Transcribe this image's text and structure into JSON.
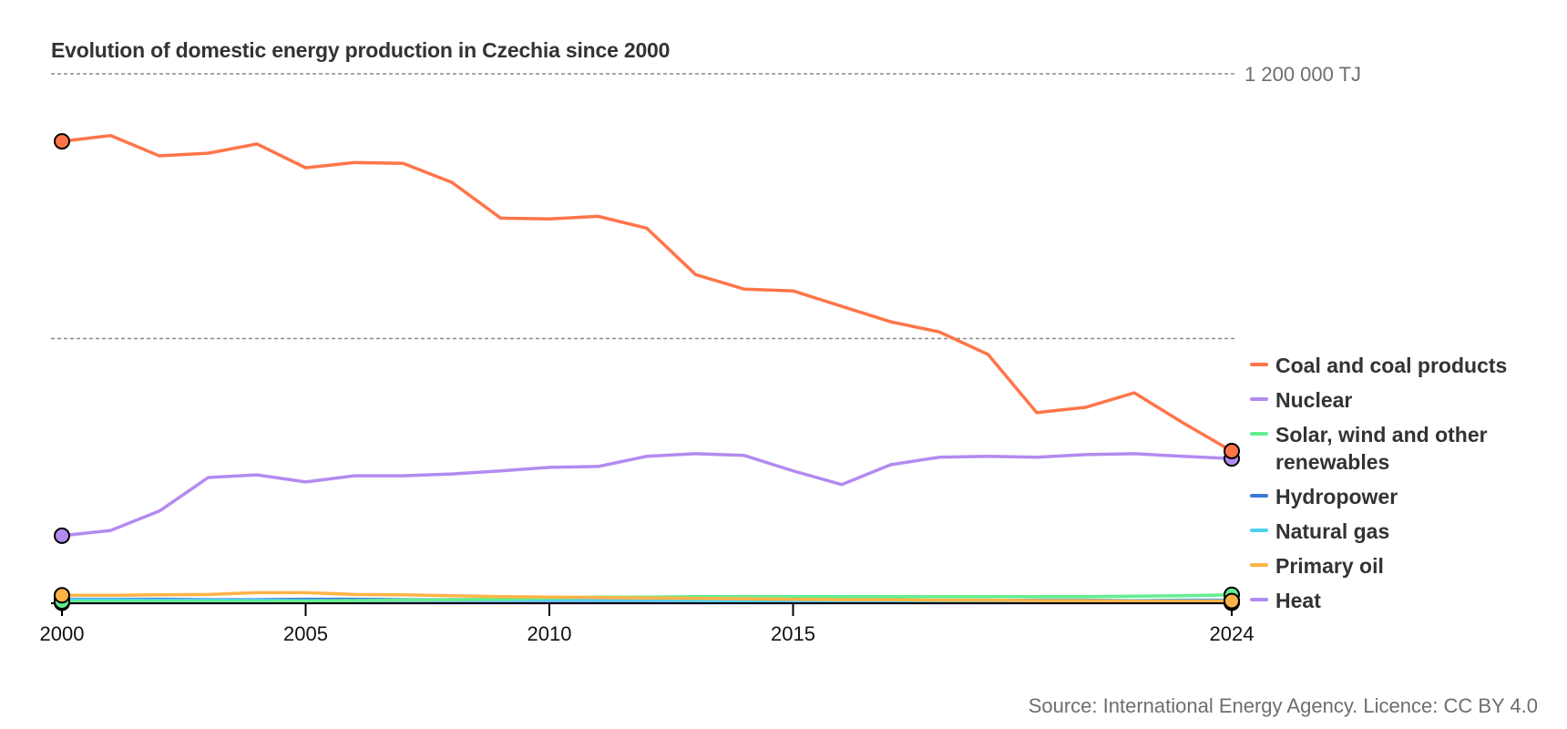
{
  "chart_data": {
    "type": "line",
    "title": "Evolution of domestic energy production in Czechia since 2000",
    "xlabel": "",
    "ylabel": "",
    "unit": "TJ",
    "x": [
      2000,
      2001,
      2002,
      2003,
      2004,
      2005,
      2006,
      2007,
      2008,
      2009,
      2010,
      2011,
      2012,
      2013,
      2014,
      2015,
      2016,
      2017,
      2018,
      2019,
      2020,
      2021,
      2022,
      2023,
      2024
    ],
    "xlim": [
      2000,
      2024
    ],
    "ylim": [
      0,
      1200000
    ],
    "x_ticks": [
      2000,
      2005,
      2010,
      2015,
      2024
    ],
    "x_tick_labels": [
      "2000",
      "2005",
      "2010",
      "2015",
      "2024"
    ],
    "gridlines": [
      600000,
      1200000
    ],
    "gridline_labels": [
      "",
      "1 200 000 TJ"
    ],
    "grid": true,
    "legend_position": "right",
    "series": [
      {
        "name": "Coal and coal products",
        "color": "#ff7549",
        "values": [
          1047000,
          1060000,
          1014000,
          1020000,
          1041000,
          987000,
          999000,
          997000,
          954000,
          873000,
          871000,
          877000,
          850000,
          745000,
          712000,
          708000,
          673000,
          638000,
          615000,
          564000,
          432000,
          444000,
          477000,
          409000,
          345000
        ]
      },
      {
        "name": "Nuclear",
        "color": "#b28bf0",
        "values": [
          153000,
          165000,
          209000,
          285000,
          291000,
          275000,
          289000,
          289000,
          293000,
          300000,
          308000,
          310000,
          333000,
          339000,
          335000,
          300000,
          269000,
          314000,
          331000,
          333000,
          331000,
          337000,
          339000,
          333000,
          328000
        ]
      },
      {
        "name": "Solar, wind and other renewables",
        "color": "#62ee8f",
        "values": [
          4000,
          4000,
          4000,
          4000,
          4000,
          5000,
          6000,
          7000,
          8000,
          9000,
          12000,
          14000,
          14000,
          15000,
          15000,
          15000,
          15000,
          15000,
          15000,
          15000,
          15000,
          15000,
          16000,
          17000,
          19000
        ]
      },
      {
        "name": "Hydropower",
        "color": "#3c78d8",
        "values": [
          9000,
          9000,
          9000,
          8000,
          8000,
          9000,
          9000,
          8000,
          8000,
          8000,
          8000,
          7000,
          7000,
          8000,
          7000,
          6000,
          6000,
          6000,
          6000,
          6000,
          7000,
          7000,
          6000,
          7000,
          7000
        ]
      },
      {
        "name": "Natural gas",
        "color": "#4fd0f0",
        "values": [
          8000,
          8000,
          7000,
          7000,
          7000,
          6000,
          6000,
          7000,
          7000,
          7000,
          7000,
          7000,
          7000,
          6000,
          6000,
          6000,
          6000,
          6000,
          6000,
          6000,
          6000,
          6000,
          6000,
          6000,
          6000
        ]
      },
      {
        "name": "Primary oil",
        "color": "#ffb347",
        "values": [
          18000,
          18000,
          19000,
          20000,
          24000,
          24000,
          20000,
          19000,
          17000,
          15000,
          14000,
          13000,
          12000,
          11000,
          10000,
          9000,
          8000,
          8000,
          7000,
          7000,
          6000,
          6000,
          5000,
          5000,
          5000
        ]
      },
      {
        "name": "Heat",
        "color": "#b28bf0",
        "values": [
          1000,
          1000,
          1000,
          1000,
          1000,
          1000,
          1000,
          1000,
          1000,
          1000,
          1000,
          1000,
          1000,
          1000,
          1000,
          1000,
          1000,
          1000,
          1000,
          1000,
          1000,
          1000,
          1000,
          1000,
          1000
        ]
      }
    ],
    "source": "Source: International Energy Agency. Licence: CC BY 4.0"
  }
}
